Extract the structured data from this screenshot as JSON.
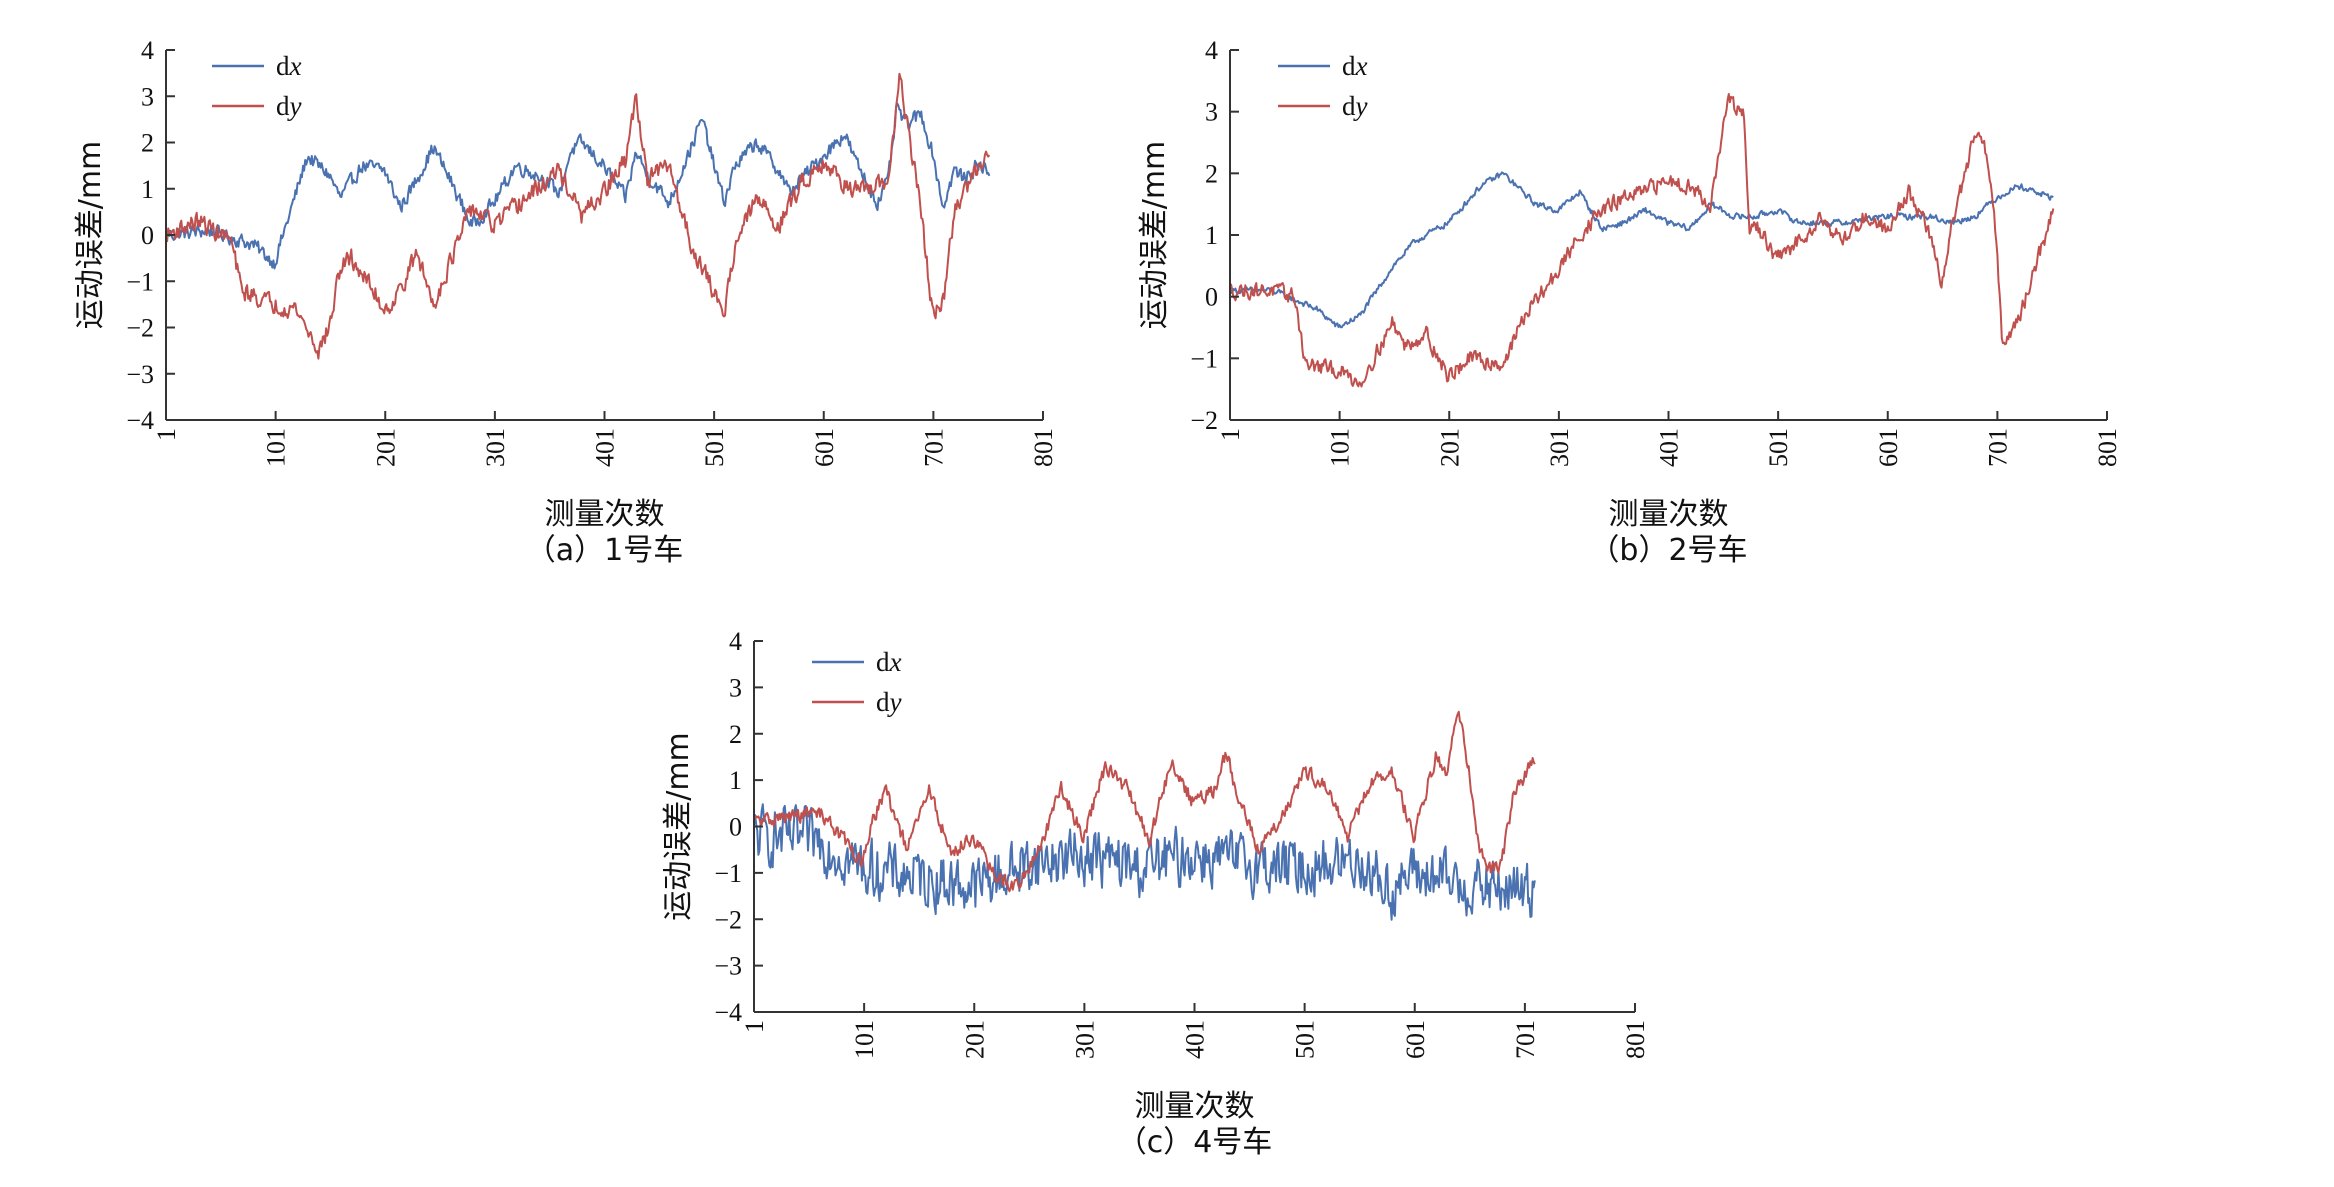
{
  "colors": {
    "dx": "#4a72b0",
    "dy": "#c0504d",
    "axis": "#333333"
  },
  "chart_data": [
    {
      "type": "line",
      "caption": "（a）1号车",
      "xlabel": "测量次数",
      "ylabel": "运动误差/mm",
      "xlim": [
        1,
        801
      ],
      "ylim": [
        -4,
        4
      ],
      "xticks": [
        "1",
        "101",
        "201",
        "301",
        "401",
        "501",
        "601",
        "701",
        "801"
      ],
      "yticks": [
        "4",
        "3",
        "2",
        "1",
        "0",
        "−1",
        "−2",
        "−3",
        "−4"
      ],
      "legend": [
        "dx",
        "dy"
      ],
      "series": [
        {
          "name": "dx",
          "noise": 0.22,
          "x": [
            1,
            40,
            80,
            100,
            130,
            150,
            160,
            180,
            200,
            215,
            225,
            245,
            260,
            280,
            300,
            320,
            340,
            360,
            370,
            380,
            400,
            420,
            430,
            440,
            460,
            480,
            490,
            500,
            510,
            520,
            540,
            560,
            570,
            580,
            600,
            620,
            630,
            650,
            660,
            668,
            675,
            690,
            700,
            710,
            720,
            730,
            740,
            752
          ],
          "values": [
            0,
            0.1,
            -0.2,
            -0.6,
            1.7,
            1.3,
            0.8,
            1.5,
            1.4,
            0.6,
            1.0,
            1.9,
            1.2,
            0.2,
            0.7,
            1.5,
            1.3,
            0.9,
            1.8,
            2.0,
            1.5,
            0.8,
            1.8,
            1.3,
            0.7,
            1.9,
            2.5,
            1.6,
            0.7,
            1.5,
            2.0,
            1.4,
            0.9,
            1.2,
            1.7,
            2.2,
            1.6,
            0.7,
            1.2,
            2.8,
            2.4,
            2.6,
            1.8,
            0.6,
            1.4,
            1.2,
            1.5,
            1.4
          ]
        },
        {
          "name": "dy",
          "noise": 0.28,
          "x": [
            1,
            30,
            60,
            70,
            100,
            120,
            140,
            150,
            160,
            170,
            190,
            200,
            210,
            230,
            245,
            260,
            280,
            300,
            320,
            340,
            360,
            380,
            400,
            420,
            430,
            440,
            460,
            480,
            500,
            510,
            520,
            540,
            560,
            580,
            600,
            620,
            640,
            660,
            670,
            680,
            690,
            700,
            710,
            720,
            735,
            752
          ],
          "values": [
            0,
            0.3,
            -0.1,
            -1.2,
            -1.5,
            -1.6,
            -2.5,
            -2.0,
            -0.7,
            -0.5,
            -1.2,
            -1.6,
            -1.4,
            -0.4,
            -1.5,
            -0.6,
            0.6,
            0.2,
            0.6,
            1.0,
            1.4,
            0.4,
            0.9,
            1.6,
            3.0,
            1.2,
            1.5,
            -0.2,
            -1.2,
            -1.7,
            -0.2,
            0.8,
            0.2,
            1.1,
            1.6,
            1.1,
            0.9,
            1.2,
            3.4,
            2.0,
            0.5,
            -1.7,
            -1.5,
            0.5,
            1.2,
            1.9
          ]
        }
      ]
    },
    {
      "type": "line",
      "caption": "（b）2号车",
      "xlabel": "测量次数",
      "ylabel": "运动误差/mm",
      "xlim": [
        1,
        801
      ],
      "ylim": [
        -2,
        4
      ],
      "xticks": [
        "1",
        "101",
        "201",
        "301",
        "401",
        "501",
        "601",
        "701",
        "801"
      ],
      "yticks": [
        "4",
        "3",
        "2",
        "1",
        "0",
        "−1",
        "−2"
      ],
      "legend": [
        "dx",
        "dy"
      ],
      "series": [
        {
          "name": "dx",
          "noise": 0.07,
          "x": [
            1,
            40,
            80,
            100,
            120,
            150,
            170,
            200,
            230,
            250,
            280,
            300,
            320,
            340,
            360,
            380,
            400,
            420,
            440,
            460,
            480,
            500,
            520,
            560,
            600,
            640,
            660,
            680,
            700,
            720,
            752
          ],
          "values": [
            0.1,
            0.1,
            -0.2,
            -0.5,
            -0.3,
            0.5,
            0.9,
            1.2,
            1.8,
            2.0,
            1.5,
            1.4,
            1.7,
            1.1,
            1.2,
            1.4,
            1.2,
            1.1,
            1.5,
            1.3,
            1.3,
            1.4,
            1.2,
            1.2,
            1.3,
            1.3,
            1.2,
            1.3,
            1.6,
            1.8,
            1.6
          ]
        },
        {
          "name": "dy",
          "noise": 0.18,
          "x": [
            1,
            40,
            60,
            70,
            100,
            120,
            150,
            160,
            180,
            200,
            220,
            250,
            270,
            300,
            320,
            340,
            360,
            380,
            400,
            420,
            440,
            455,
            460,
            470,
            475,
            480,
            500,
            520,
            540,
            560,
            580,
            600,
            620,
            640,
            650,
            660,
            680,
            690,
            700,
            705,
            720,
            752
          ],
          "values": [
            0.1,
            0.1,
            0.0,
            -1.1,
            -1.2,
            -1.4,
            -0.4,
            -0.8,
            -0.6,
            -1.3,
            -1.0,
            -1.1,
            -0.3,
            0.4,
            1.0,
            1.4,
            1.6,
            1.7,
            1.9,
            1.8,
            1.5,
            3.2,
            3.1,
            2.9,
            1.0,
            1.2,
            0.6,
            0.9,
            1.3,
            0.9,
            1.3,
            1.1,
            1.7,
            1.0,
            0.2,
            1.2,
            2.6,
            2.4,
            1.0,
            -0.7,
            -0.4,
            1.4
          ]
        }
      ]
    },
    {
      "type": "line",
      "caption": "（c）4号车",
      "xlabel": "测量次数",
      "ylabel": "运动误差/mm",
      "xlim": [
        1,
        801
      ],
      "ylim": [
        -4,
        4
      ],
      "xticks": [
        "1",
        "101",
        "201",
        "301",
        "401",
        "501",
        "601",
        "701",
        "801"
      ],
      "yticks": [
        "4",
        "3",
        "2",
        "1",
        "0",
        "−1",
        "−2",
        "−3",
        "−4"
      ],
      "legend": [
        "dx",
        "dy"
      ],
      "series": [
        {
          "name": "dx",
          "noise": 0.85,
          "x": [
            1,
            60,
            100,
            150,
            200,
            250,
            300,
            350,
            400,
            450,
            500,
            550,
            580,
            600,
            650,
            710
          ],
          "values": [
            -0.2,
            -0.3,
            -0.9,
            -1.1,
            -1.3,
            -0.8,
            -0.6,
            -0.9,
            -0.6,
            -0.8,
            -0.9,
            -0.7,
            -1.4,
            -1.0,
            -1.3,
            -1.4
          ]
        },
        {
          "name": "dy",
          "noise": 0.22,
          "x": [
            1,
            60,
            70,
            100,
            110,
            120,
            140,
            160,
            180,
            200,
            220,
            240,
            260,
            280,
            300,
            320,
            340,
            360,
            380,
            400,
            420,
            430,
            440,
            460,
            480,
            500,
            520,
            540,
            560,
            580,
            600,
            620,
            630,
            640,
            650,
            660,
            670,
            680,
            690,
            710
          ],
          "values": [
            0.1,
            0.3,
            0.1,
            -0.8,
            0.2,
            0.8,
            -0.5,
            0.8,
            -0.6,
            -0.2,
            -1.1,
            -1.3,
            -0.5,
            0.8,
            -0.2,
            1.3,
            0.8,
            -0.3,
            1.4,
            0.5,
            0.8,
            1.6,
            0.6,
            -0.5,
            0.2,
            1.2,
            0.9,
            -0.2,
            0.9,
            1.2,
            -0.2,
            1.5,
            1.2,
            2.6,
            1.2,
            -0.5,
            -0.9,
            -0.8,
            0.6,
            1.5
          ]
        }
      ]
    }
  ]
}
